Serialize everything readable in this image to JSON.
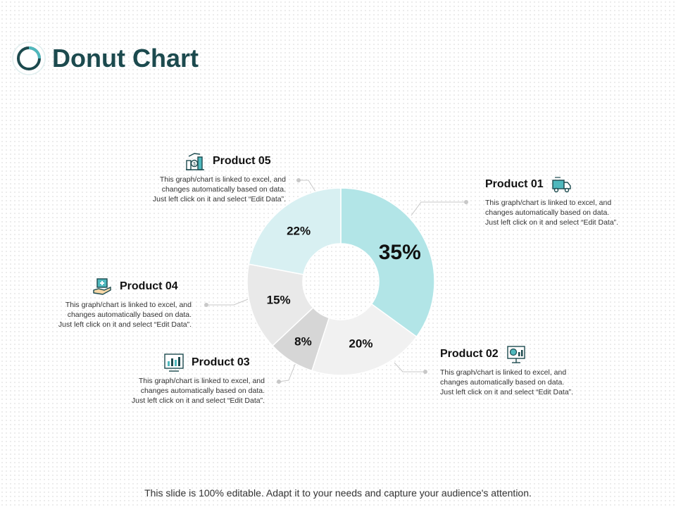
{
  "page": {
    "title": "Donut Chart",
    "footer": "This slide is 100% editable. Adapt it to your needs and capture your audience's attention."
  },
  "colors": {
    "title": "#1c4a4e",
    "accent": "#2a8a8f"
  },
  "chart_data": {
    "type": "pie",
    "variant": "donut",
    "categories": [
      "Product 01",
      "Product 02",
      "Product 03",
      "Product 04",
      "Product 05"
    ],
    "values": [
      35,
      20,
      8,
      15,
      22
    ],
    "labels": [
      "35%",
      "20%",
      "8%",
      "15%",
      "22%"
    ],
    "colors": [
      "#b2e5e7",
      "#f1f1f1",
      "#d6d6d6",
      "#e9e9e9",
      "#d8f0f2"
    ]
  },
  "callouts": {
    "p01": {
      "title": "Product 01",
      "text": [
        "This graph/chart is linked to excel, and",
        "changes automatically based on data.",
        "Just left click on it and select “Edit Data”."
      ],
      "icon": "delivery-truck-icon"
    },
    "p02": {
      "title": "Product 02",
      "text": [
        "This graph/chart is linked to excel, and",
        "changes automatically based on data.",
        "Just left click on it and select “Edit Data”."
      ],
      "icon": "presentation-chart-icon"
    },
    "p03": {
      "title": "Product 03",
      "text": [
        "This graph/chart is linked to excel, and",
        "changes automatically based on data.",
        "Just left click on it and select “Edit Data”."
      ],
      "icon": "bar-chart-screen-icon"
    },
    "p04": {
      "title": "Product 04",
      "text": [
        "This graph/chart is linked to excel, and",
        "changes automatically based on data.",
        "Just left click on it and select “Edit Data”."
      ],
      "icon": "hand-medical-case-icon"
    },
    "p05": {
      "title": "Product 05",
      "text": [
        "This graph/chart is linked to excel, and",
        "changes automatically based on data.",
        "Just left click on it and select “Edit Data”."
      ],
      "icon": "money-growth-icon"
    }
  }
}
